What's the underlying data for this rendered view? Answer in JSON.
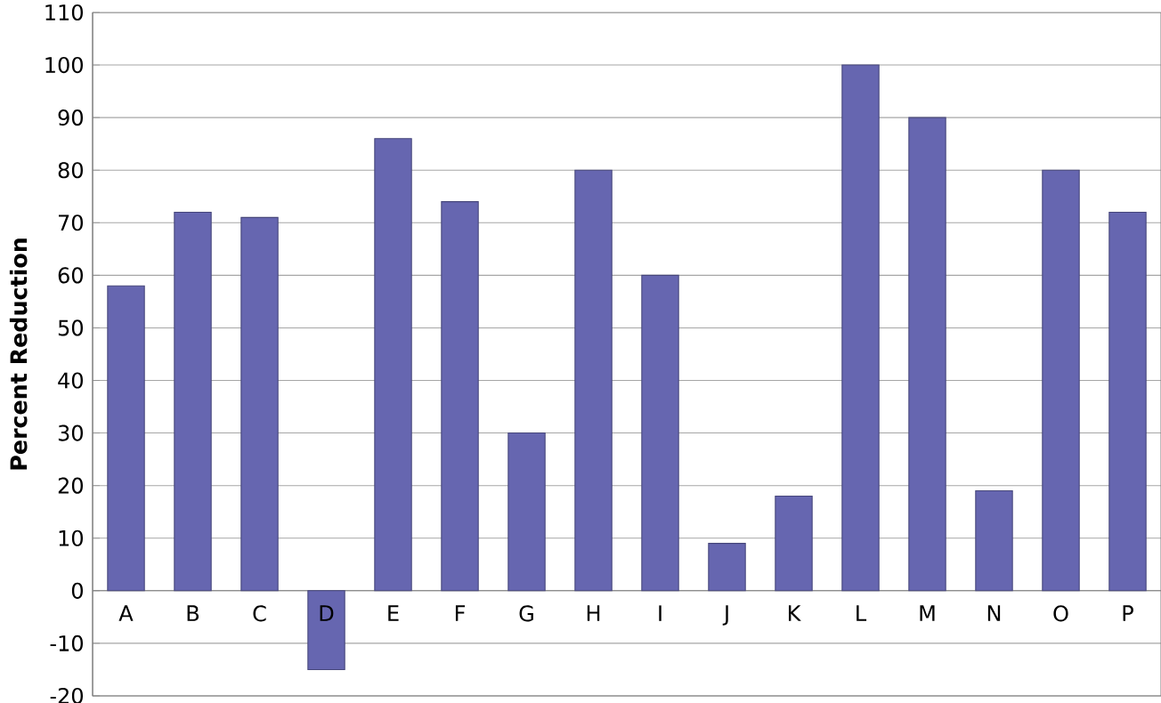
{
  "chart_data": {
    "type": "bar",
    "ylabel": "Percent Reduction",
    "categories": [
      "A",
      "B",
      "C",
      "D",
      "E",
      "F",
      "G",
      "H",
      "I",
      "J",
      "K",
      "L",
      "M",
      "N",
      "O",
      "P"
    ],
    "values": [
      58,
      72,
      71,
      -15,
      86,
      74,
      30,
      80,
      60,
      9,
      18,
      100,
      90,
      19,
      80,
      72
    ],
    "color": "#6666b0",
    "ylim": [
      -20,
      110
    ],
    "yticks": [
      -20,
      -10,
      0,
      10,
      20,
      30,
      40,
      50,
      60,
      70,
      80,
      90,
      100,
      110
    ],
    "grid": "y"
  }
}
